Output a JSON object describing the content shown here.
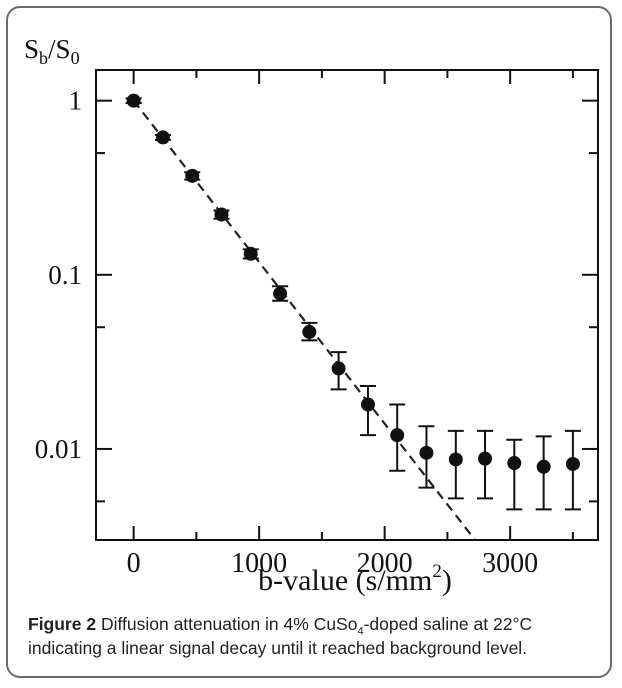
{
  "chart_data": {
    "type": "scatter",
    "yscale": "log",
    "xlim": [
      -300,
      3700
    ],
    "ylim": [
      0.003,
      1.5
    ],
    "xticks": [
      0,
      1000,
      2000,
      3000
    ],
    "xtick_labels": [
      "0",
      "1000",
      "2000",
      "3000"
    ],
    "yticks": [
      1,
      0.1,
      0.01
    ],
    "ytick_labels": [
      "1",
      "0.1",
      "0.01"
    ],
    "ylabel": {
      "main": "S",
      "sub1": "b",
      "mid": "/S",
      "sub2": "0"
    },
    "xlabel": {
      "main": "b-value (s/mm",
      "sup": "2",
      "tail": ")"
    },
    "grid": false,
    "series": [
      {
        "points": [
          {
            "x": 0,
            "y": 1.0,
            "ylo": 0.97,
            "yhi": 1.03
          },
          {
            "x": 233,
            "y": 0.615,
            "ylo": 0.595,
            "yhi": 0.635
          },
          {
            "x": 467,
            "y": 0.37,
            "ylo": 0.352,
            "yhi": 0.388
          },
          {
            "x": 700,
            "y": 0.222,
            "ylo": 0.21,
            "yhi": 0.234
          },
          {
            "x": 933,
            "y": 0.132,
            "ylo": 0.124,
            "yhi": 0.14
          },
          {
            "x": 1167,
            "y": 0.078,
            "ylo": 0.071,
            "yhi": 0.086
          },
          {
            "x": 1400,
            "y": 0.047,
            "ylo": 0.042,
            "yhi": 0.053
          },
          {
            "x": 1633,
            "y": 0.029,
            "ylo": 0.022,
            "yhi": 0.036
          },
          {
            "x": 1867,
            "y": 0.018,
            "ylo": 0.012,
            "yhi": 0.023
          },
          {
            "x": 2100,
            "y": 0.012,
            "ylo": 0.0075,
            "yhi": 0.018
          },
          {
            "x": 2333,
            "y": 0.0095,
            "ylo": 0.006,
            "yhi": 0.0135
          },
          {
            "x": 2567,
            "y": 0.0087,
            "ylo": 0.0052,
            "yhi": 0.0127
          },
          {
            "x": 2800,
            "y": 0.0088,
            "ylo": 0.0052,
            "yhi": 0.0127
          },
          {
            "x": 3033,
            "y": 0.0083,
            "ylo": 0.0045,
            "yhi": 0.0113
          },
          {
            "x": 3267,
            "y": 0.0079,
            "ylo": 0.0045,
            "yhi": 0.0118
          },
          {
            "x": 3500,
            "y": 0.0082,
            "ylo": 0.0045,
            "yhi": 0.0127
          }
        ]
      }
    ],
    "fit_line": {
      "style": "dashed",
      "points": [
        {
          "x": 0,
          "y": 1.0
        },
        {
          "x": 2720,
          "y": 0.003
        }
      ]
    }
  },
  "caption": {
    "bold": "Figure 2",
    "text1": " Diffusion attenuation in 4% CuSo",
    "sub": "4",
    "text2": "-doped saline at 22°C indicating a linear signal decay until it reached background level."
  }
}
